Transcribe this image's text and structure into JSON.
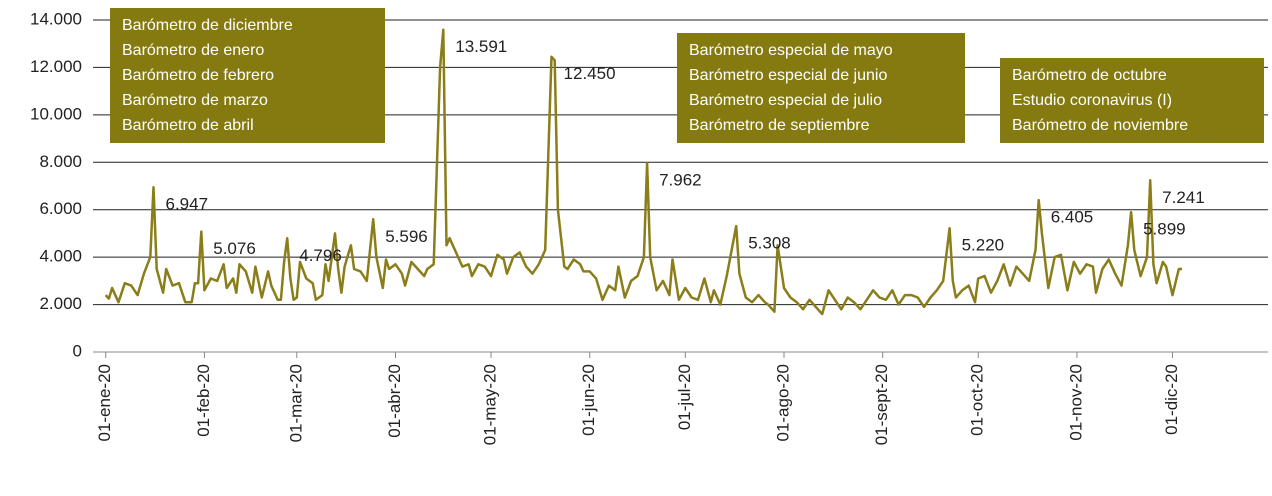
{
  "chart_data": {
    "type": "line",
    "x": [
      "2020-01-01",
      "2020-01-02",
      "2020-01-03",
      "2020-01-05",
      "2020-01-07",
      "2020-01-09",
      "2020-01-11",
      "2020-01-13",
      "2020-01-15",
      "2020-01-16",
      "2020-01-17",
      "2020-01-19",
      "2020-01-20",
      "2020-01-22",
      "2020-01-24",
      "2020-01-26",
      "2020-01-28",
      "2020-01-29",
      "2020-01-30",
      "2020-01-31",
      "2020-02-01",
      "2020-02-03",
      "2020-02-05",
      "2020-02-07",
      "2020-02-08",
      "2020-02-10",
      "2020-02-11",
      "2020-02-12",
      "2020-02-14",
      "2020-02-16",
      "2020-02-17",
      "2020-02-19",
      "2020-02-21",
      "2020-02-22",
      "2020-02-24",
      "2020-02-25",
      "2020-02-26",
      "2020-02-27",
      "2020-02-28",
      "2020-02-29",
      "2020-03-01",
      "2020-03-02",
      "2020-03-04",
      "2020-03-06",
      "2020-03-07",
      "2020-03-09",
      "2020-03-10",
      "2020-03-11",
      "2020-03-13",
      "2020-03-14",
      "2020-03-15",
      "2020-03-16",
      "2020-03-18",
      "2020-03-19",
      "2020-03-21",
      "2020-03-23",
      "2020-03-25",
      "2020-03-26",
      "2020-03-28",
      "2020-03-29",
      "2020-03-30",
      "2020-04-01",
      "2020-04-03",
      "2020-04-04",
      "2020-04-06",
      "2020-04-08",
      "2020-04-10",
      "2020-04-11",
      "2020-04-13",
      "2020-04-15",
      "2020-04-16",
      "2020-04-17",
      "2020-04-18",
      "2020-04-20",
      "2020-04-22",
      "2020-04-24",
      "2020-04-25",
      "2020-04-27",
      "2020-04-29",
      "2020-05-01",
      "2020-05-03",
      "2020-05-05",
      "2020-05-06",
      "2020-05-08",
      "2020-05-10",
      "2020-05-12",
      "2020-05-14",
      "2020-05-16",
      "2020-05-18",
      "2020-05-20",
      "2020-05-21",
      "2020-05-22",
      "2020-05-24",
      "2020-05-25",
      "2020-05-27",
      "2020-05-29",
      "2020-05-30",
      "2020-06-01",
      "2020-06-03",
      "2020-06-05",
      "2020-06-07",
      "2020-06-09",
      "2020-06-10",
      "2020-06-12",
      "2020-06-14",
      "2020-06-16",
      "2020-06-18",
      "2020-06-19",
      "2020-06-20",
      "2020-06-22",
      "2020-06-24",
      "2020-06-26",
      "2020-06-27",
      "2020-06-29",
      "2020-07-01",
      "2020-07-03",
      "2020-07-05",
      "2020-07-07",
      "2020-07-09",
      "2020-07-10",
      "2020-07-12",
      "2020-07-14",
      "2020-07-17",
      "2020-07-18",
      "2020-07-20",
      "2020-07-22",
      "2020-07-24",
      "2020-07-26",
      "2020-07-27",
      "2020-07-29",
      "2020-07-30",
      "2020-08-01",
      "2020-08-03",
      "2020-08-05",
      "2020-08-07",
      "2020-08-09",
      "2020-08-11",
      "2020-08-13",
      "2020-08-15",
      "2020-08-17",
      "2020-08-19",
      "2020-08-21",
      "2020-08-23",
      "2020-08-25",
      "2020-08-27",
      "2020-08-29",
      "2020-08-31",
      "2020-09-02",
      "2020-09-04",
      "2020-09-06",
      "2020-09-08",
      "2020-09-10",
      "2020-09-12",
      "2020-09-14",
      "2020-09-16",
      "2020-09-18",
      "2020-09-20",
      "2020-09-22",
      "2020-09-23",
      "2020-09-24",
      "2020-09-26",
      "2020-09-28",
      "2020-09-30",
      "2020-10-01",
      "2020-10-03",
      "2020-10-05",
      "2020-10-07",
      "2020-10-09",
      "2020-10-11",
      "2020-10-13",
      "2020-10-15",
      "2020-10-17",
      "2020-10-19",
      "2020-10-20",
      "2020-10-21",
      "2020-10-23",
      "2020-10-25",
      "2020-10-27",
      "2020-10-29",
      "2020-10-31",
      "2020-11-02",
      "2020-11-04",
      "2020-11-06",
      "2020-11-07",
      "2020-11-09",
      "2020-11-11",
      "2020-11-13",
      "2020-11-15",
      "2020-11-17",
      "2020-11-18",
      "2020-11-19",
      "2020-11-21",
      "2020-11-23",
      "2020-11-24",
      "2020-11-25",
      "2020-11-26",
      "2020-11-28",
      "2020-11-29",
      "2020-12-01",
      "2020-12-03",
      "2020-12-04"
    ],
    "values": [
      2400,
      2250,
      2700,
      2100,
      2900,
      2800,
      2400,
      3300,
      4000,
      6947,
      3500,
      2500,
      3500,
      2800,
      2900,
      2100,
      2100,
      2900,
      2900,
      5076,
      2600,
      3100,
      3000,
      3700,
      2700,
      3100,
      2500,
      3700,
      3400,
      2500,
      3600,
      2300,
      3400,
      2800,
      2200,
      2200,
      3800,
      4796,
      3100,
      2200,
      2300,
      3800,
      3100,
      2900,
      2200,
      2400,
      3700,
      3000,
      5000,
      3500,
      2500,
      3600,
      4500,
      3500,
      3400,
      3000,
      5596,
      4000,
      2700,
      3900,
      3500,
      3700,
      3300,
      2800,
      3800,
      3500,
      3200,
      3500,
      3700,
      12000,
      13591,
      4500,
      4800,
      4200,
      3600,
      3700,
      3200,
      3700,
      3600,
      3200,
      4100,
      3900,
      3300,
      4000,
      4200,
      3600,
      3300,
      3700,
      4300,
      12450,
      12300,
      6000,
      3600,
      3500,
      3900,
      3700,
      3400,
      3400,
      3100,
      2200,
      2800,
      2600,
      3600,
      2300,
      3000,
      3200,
      4000,
      7962,
      4000,
      2600,
      3000,
      2400,
      3900,
      2200,
      2700,
      2300,
      2200,
      3100,
      2100,
      2600,
      2000,
      3200,
      5308,
      3300,
      2300,
      2100,
      2400,
      2100,
      2000,
      1700,
      4500,
      2700,
      2300,
      2100,
      1800,
      2200,
      1900,
      1600,
      2600,
      2200,
      1800,
      2300,
      2100,
      1800,
      2200,
      2600,
      2300,
      2200,
      2600,
      2000,
      2400,
      2400,
      2300,
      1900,
      2300,
      2600,
      3000,
      5220,
      3000,
      2300,
      2600,
      2800,
      2100,
      3100,
      3200,
      2500,
      3000,
      3700,
      2800,
      3600,
      3300,
      3000,
      4300,
      6405,
      5000,
      2700,
      4000,
      4100,
      2600,
      3800,
      3300,
      3700,
      3600,
      2500,
      3500,
      3900,
      3300,
      2800,
      4500,
      5899,
      4300,
      3200,
      4000,
      7241,
      3700,
      2900,
      3800,
      3600,
      2400,
      3500,
      3500
    ],
    "color": "#8a7d1a",
    "xlim": [
      "2019-12-28",
      "2020-12-31"
    ],
    "xticks": [
      {
        "value": "2020-01-01",
        "label": "01-ene-20"
      },
      {
        "value": "2020-02-01",
        "label": "01-feb-20"
      },
      {
        "value": "2020-03-01",
        "label": "01-mar-20"
      },
      {
        "value": "2020-04-01",
        "label": "01-abr-20"
      },
      {
        "value": "2020-05-01",
        "label": "01-may-20"
      },
      {
        "value": "2020-06-01",
        "label": "01-jun-20"
      },
      {
        "value": "2020-07-01",
        "label": "01-jul-20"
      },
      {
        "value": "2020-08-01",
        "label": "01-ago-20"
      },
      {
        "value": "2020-09-01",
        "label": "01-sept-20"
      },
      {
        "value": "2020-10-01",
        "label": "01-oct-20"
      },
      {
        "value": "2020-11-01",
        "label": "01-nov-20"
      },
      {
        "value": "2020-12-01",
        "label": "01-dic-20"
      }
    ],
    "ylim": [
      0,
      14000
    ],
    "yticks": [
      0,
      {
        "value": 2000,
        "label": "2.000"
      },
      {
        "value": 4000,
        "label": "4.000"
      },
      {
        "value": 6000,
        "label": "6.000"
      },
      {
        "value": 8000,
        "label": "8.000"
      },
      {
        "value": 10000,
        "label": "10.000"
      },
      {
        "value": 12000,
        "label": "12.000"
      },
      {
        "value": 14000,
        "label": "14.000"
      }
    ],
    "grid": true,
    "annotations": [
      {
        "x": "2020-01-16",
        "value": 6947,
        "label": "6.947"
      },
      {
        "x": "2020-01-31",
        "value": 5076,
        "label": "5.076"
      },
      {
        "x": "2020-02-27",
        "value": 4796,
        "label": "4.796"
      },
      {
        "x": "2020-03-25",
        "value": 5596,
        "label": "5.596"
      },
      {
        "x": "2020-04-16",
        "value": 13591,
        "label": "13.591"
      },
      {
        "x": "2020-05-20",
        "value": 12450,
        "label": "12.450"
      },
      {
        "x": "2020-06-19",
        "value": 7962,
        "label": "7.962"
      },
      {
        "x": "2020-07-17",
        "value": 5308,
        "label": "5.308"
      },
      {
        "x": "2020-09-22",
        "value": 5220,
        "label": "5.220"
      },
      {
        "x": "2020-10-20",
        "value": 6405,
        "label": "6.405"
      },
      {
        "x": "2020-11-18",
        "value": 5899,
        "label": "5.899"
      },
      {
        "x": "2020-11-24",
        "value": 7241,
        "label": "7.241"
      }
    ],
    "notes": [
      [
        "Barómetro de diciembre",
        "Barómetro de enero",
        "Barómetro de febrero",
        "Barómetro de marzo",
        "Barómetro de abril"
      ],
      [
        "Barómetro especial de mayo",
        "Barómetro especial de junio",
        "Barómetro especial de julio",
        "Barómetro de septiembre"
      ],
      [
        "Barómetro de octubre",
        "Estudio coronavirus (I)",
        "Barómetro de noviembre"
      ]
    ]
  }
}
